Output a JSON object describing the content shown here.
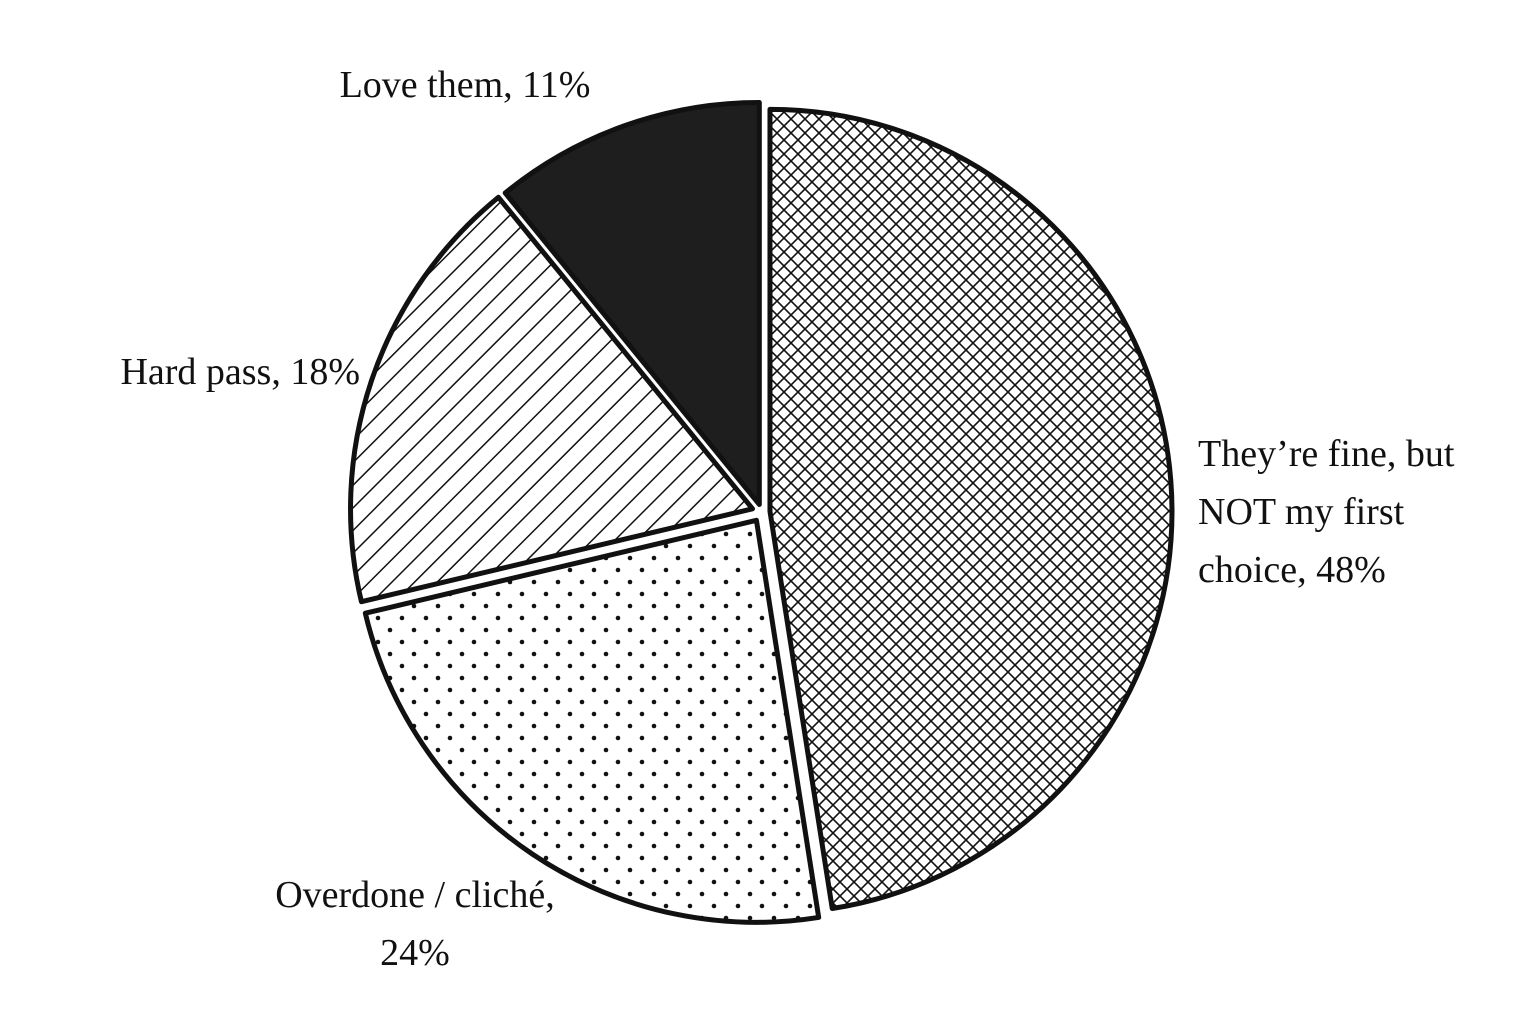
{
  "chart_data": {
    "type": "pie",
    "values": [
      48,
      24,
      18,
      11
    ],
    "value_labels": [
      "They’re fine, but NOT my first choice, 48%",
      "Overdone / cliché, 24%",
      "Hard pass, 18%",
      "Love them, 11%"
    ]
  }
}
